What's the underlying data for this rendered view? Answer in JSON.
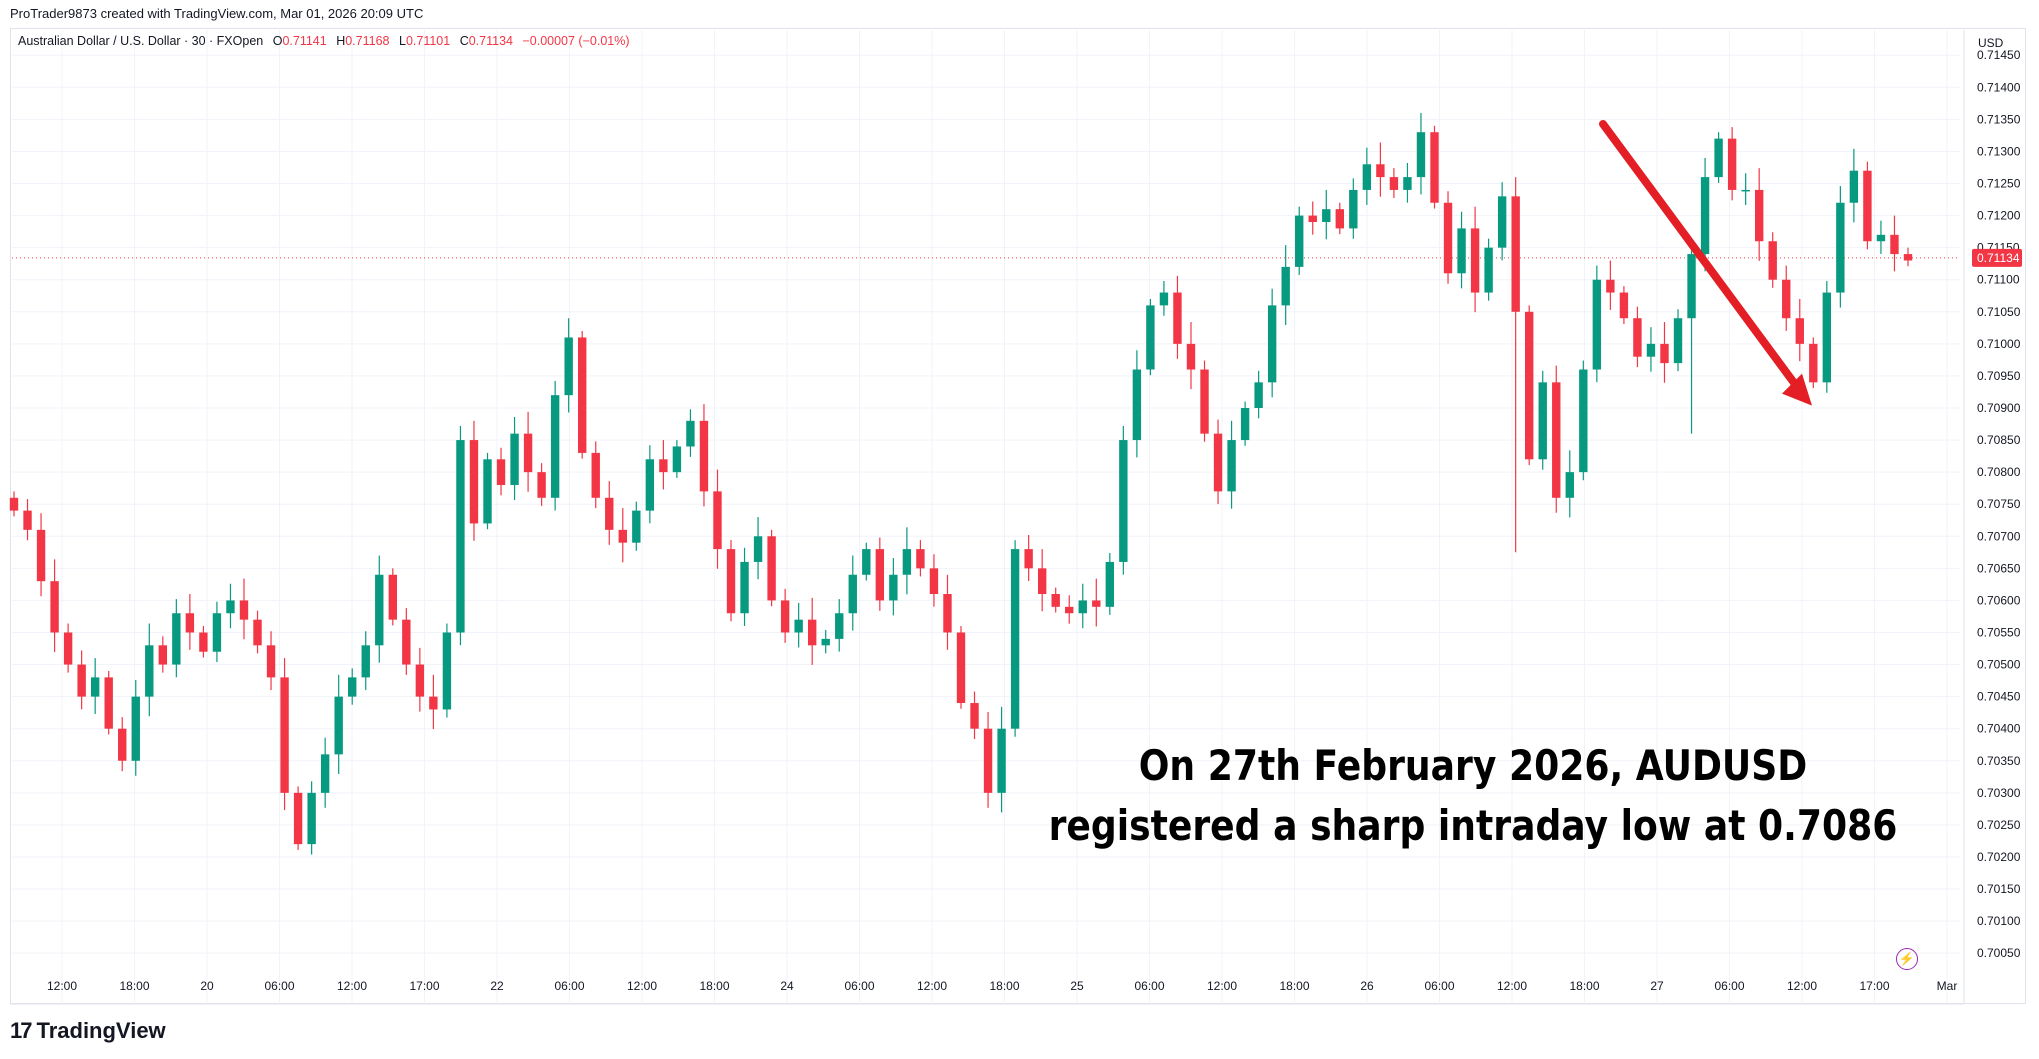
{
  "header": {
    "credit": "ProTrader9873 created with TradingView.com, Mar 01, 2026 20:09 UTC"
  },
  "symbol": {
    "name": "Australian Dollar / U.S. Dollar · 30 · FXOpen",
    "o_label": "O",
    "o": "0.71141",
    "h_label": "H",
    "h": "0.71168",
    "l_label": "L",
    "l": "0.71101",
    "c_label": "C",
    "c": "0.71134",
    "change": "−0.00007 (−0.01%)"
  },
  "price_axis": {
    "currency": "USD",
    "current_price_label": "0.71134"
  },
  "annotation": {
    "line1": "On 27th February 2026, AUDUSD",
    "line2": "registered a sharp intraday low at 0.7086"
  },
  "branding": {
    "logo_text": "TradingView",
    "logo_mark": "17"
  },
  "colors": {
    "up": "#089981",
    "down": "#f23645",
    "arrow": "#e31e24",
    "grid": "#f0f3fa",
    "price_line": "#f23645",
    "axis_text": "#131722"
  },
  "icons": {
    "replay": "lightning-icon"
  },
  "chart_data": {
    "type": "candlestick",
    "title": "",
    "y_ticks": [
      "0.71450",
      "0.71400",
      "0.71350",
      "0.71300",
      "0.71250",
      "0.71200",
      "0.71150",
      "0.71100",
      "0.71050",
      "0.71000",
      "0.70950",
      "0.70900",
      "0.70850",
      "0.70800",
      "0.70750",
      "0.70700",
      "0.70650",
      "0.70600",
      "0.70550",
      "0.70500",
      "0.70450",
      "0.70400",
      "0.70350",
      "0.70300",
      "0.70250",
      "0.70200",
      "0.70150",
      "0.70100",
      "0.70050"
    ],
    "ylim": [
      0.7003,
      0.7148
    ],
    "x_ticks": [
      "12:00",
      "18:00",
      "20",
      "06:00",
      "12:00",
      "17:00",
      "22",
      "06:00",
      "12:00",
      "18:00",
      "24",
      "06:00",
      "12:00",
      "18:00",
      "25",
      "06:00",
      "12:00",
      "18:00",
      "26",
      "06:00",
      "12:00",
      "18:00",
      "27",
      "06:00",
      "12:00",
      "17:00",
      "Mar"
    ],
    "current_price": 0.71134,
    "low_annotation": {
      "date": "27 Feb 2026",
      "value": 0.7086
    },
    "close_path": [
      0.7074,
      0.7071,
      0.7063,
      0.7055,
      0.705,
      0.7045,
      0.7048,
      0.704,
      0.7035,
      0.7045,
      0.7053,
      0.705,
      0.7058,
      0.7055,
      0.7052,
      0.7058,
      0.706,
      0.7057,
      0.7053,
      0.7048,
      0.703,
      0.7022,
      0.703,
      0.7036,
      0.7045,
      0.7048,
      0.7053,
      0.7064,
      0.7057,
      0.705,
      0.7045,
      0.7043,
      0.7055,
      0.7085,
      0.7072,
      0.7082,
      0.7078,
      0.7086,
      0.708,
      0.7076,
      0.7092,
      0.7101,
      0.7083,
      0.7076,
      0.7071,
      0.7069,
      0.7074,
      0.7082,
      0.708,
      0.7084,
      0.7088,
      0.7077,
      0.7068,
      0.7058,
      0.7066,
      0.707,
      0.706,
      0.7055,
      0.7057,
      0.7053,
      0.7054,
      0.7058,
      0.7064,
      0.7068,
      0.706,
      0.7064,
      0.7068,
      0.7065,
      0.7061,
      0.7055,
      0.7044,
      0.704,
      0.703,
      0.704,
      0.7068,
      0.7065,
      0.7061,
      0.7059,
      0.7058,
      0.706,
      0.7059,
      0.7066,
      0.7085,
      0.7096,
      0.7106,
      0.7108,
      0.71,
      0.7096,
      0.7086,
      0.7077,
      0.7085,
      0.709,
      0.7094,
      0.7106,
      0.7112,
      0.712,
      0.7119,
      0.7121,
      0.7118,
      0.7124,
      0.7128,
      0.7126,
      0.7124,
      0.7126,
      0.7133,
      0.7122,
      0.7111,
      0.7118,
      0.7108,
      0.7115,
      0.7123,
      0.7105,
      0.7082,
      0.7094,
      0.7076,
      0.708,
      0.7096,
      0.711,
      0.7108,
      0.7104,
      0.7098,
      0.71,
      0.7097,
      0.7104,
      0.7114,
      0.7126,
      0.7132,
      0.7124,
      0.7124,
      0.7116,
      0.711,
      0.7104,
      0.71,
      0.7094,
      0.7108,
      0.7122,
      0.7127,
      0.7116,
      0.7117,
      0.7114,
      0.7113
    ]
  }
}
